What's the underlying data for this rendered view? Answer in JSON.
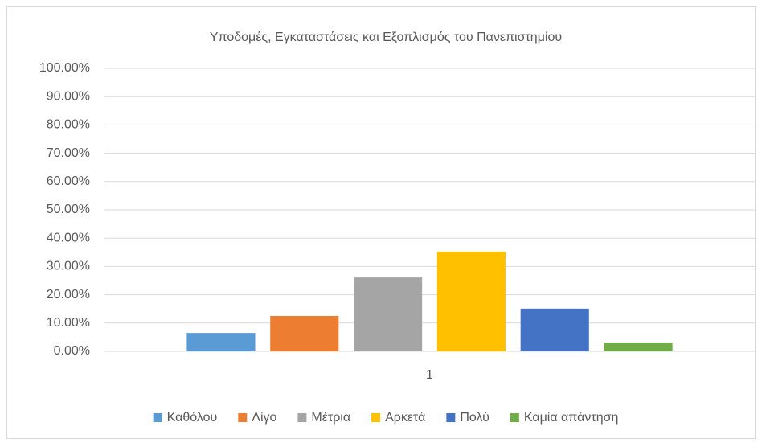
{
  "chart_data": {
    "type": "bar",
    "title": "Υποδομές, Εγκαταστάσεις και Εξοπλισμός του Πανεπιστημίου",
    "categories": [
      "1"
    ],
    "series": [
      {
        "name": "Καθόλου",
        "color": "#5b9bd5",
        "values": [
          6.5
        ]
      },
      {
        "name": "Λίγο",
        "color": "#ed7d31",
        "values": [
          12.5
        ]
      },
      {
        "name": "Μέτρια",
        "color": "#a5a5a5",
        "values": [
          26.1
        ]
      },
      {
        "name": "Αρκετά",
        "color": "#ffc000",
        "values": [
          35.2
        ]
      },
      {
        "name": "Πολύ",
        "color": "#4472c4",
        "values": [
          15.1
        ]
      },
      {
        "name": "Καμία απάντηση",
        "color": "#70ad47",
        "values": [
          3.1
        ]
      }
    ],
    "ylim": [
      0,
      100
    ],
    "yticks": [
      {
        "value": 0,
        "label": "0.00%"
      },
      {
        "value": 10,
        "label": "10.00%"
      },
      {
        "value": 20,
        "label": "20.00%"
      },
      {
        "value": 30,
        "label": "30.00%"
      },
      {
        "value": 40,
        "label": "40.00%"
      },
      {
        "value": 50,
        "label": "50.00%"
      },
      {
        "value": 60,
        "label": "60.00%"
      },
      {
        "value": 70,
        "label": "70.00%"
      },
      {
        "value": 80,
        "label": "80.00%"
      },
      {
        "value": 90,
        "label": "90.00%"
      },
      {
        "value": 100,
        "label": "100.00%"
      }
    ],
    "grid": true,
    "legend": "bottom"
  }
}
